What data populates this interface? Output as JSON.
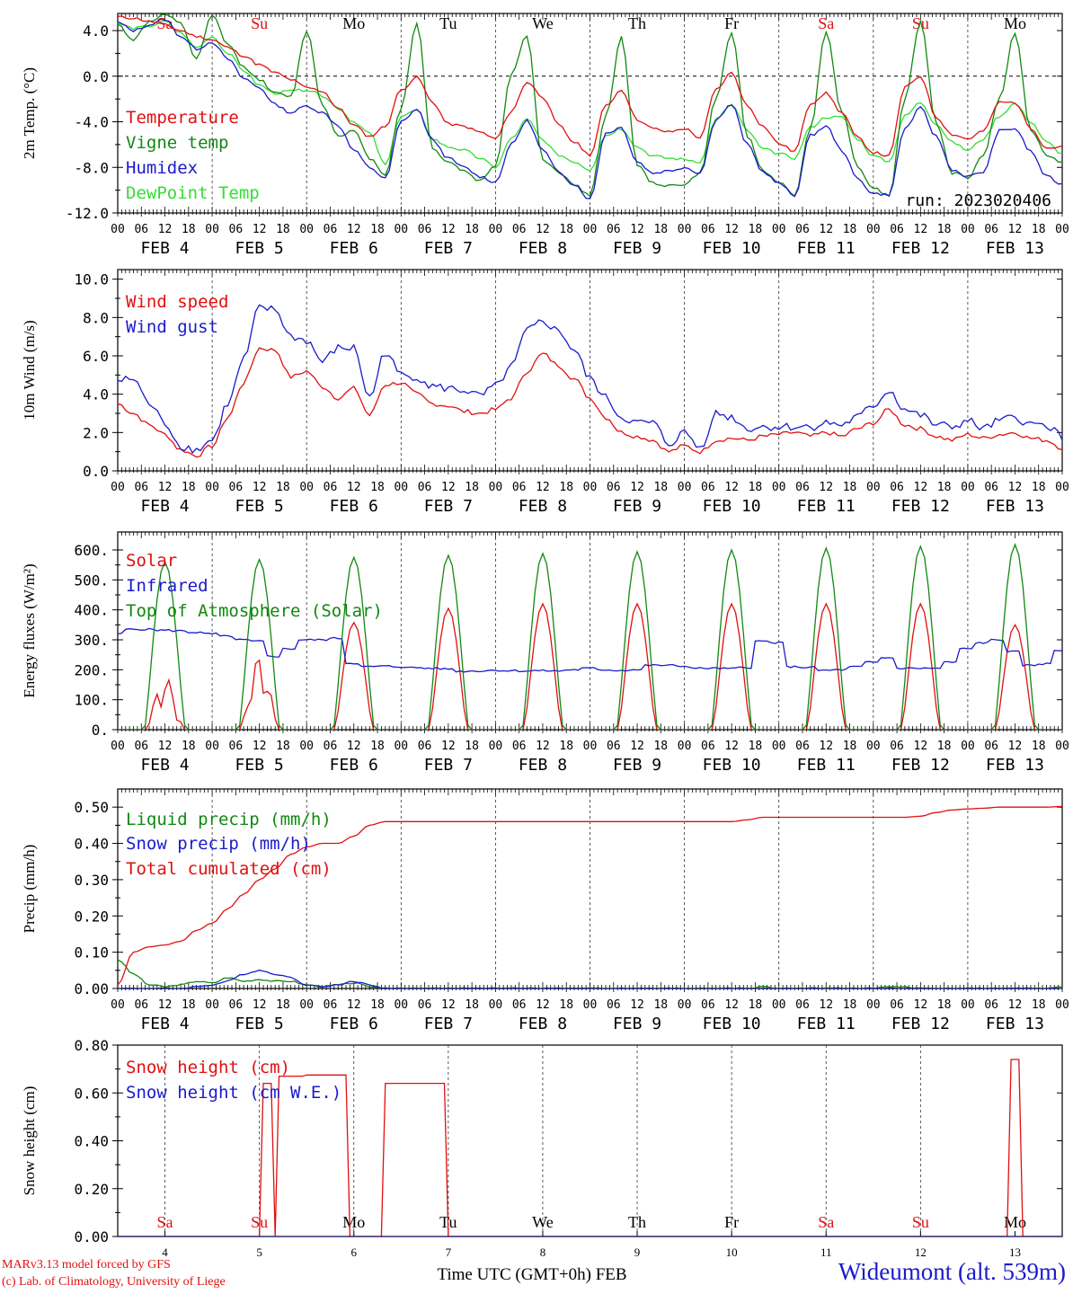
{
  "chart_data": [
    {
      "type": "line",
      "ylabel": "2m Temp. (°C)",
      "ylim": [
        -12,
        5.5
      ],
      "yticks": [
        "4.0",
        "0.0",
        "-4.0",
        "-8.0",
        "-12.0"
      ],
      "ytick_values": [
        4,
        0,
        -4,
        -8,
        -12
      ],
      "annotation": "run: 2023020406",
      "series": [
        {
          "name": "Temperature",
          "color": "#e01010",
          "values": [
            5.2,
            5.1,
            4.8,
            4.5,
            4.0,
            3.5,
            3.2,
            2.5,
            1.8,
            1.0,
            0.3,
            -0.3,
            -1.0,
            -1.3,
            -2.8,
            -4.3,
            -5.3,
            -4.4,
            -1.2,
            -0.1,
            -2.3,
            -4.2,
            -4.4,
            -4.9,
            -5.5,
            -3.1,
            -0.5,
            -1.8,
            -4.3,
            -5.8,
            -6.9,
            -2.6,
            -1.2,
            -3.8,
            -4.6,
            -4.9,
            -4.6,
            -5.4,
            -1.2,
            0.3,
            -2.6,
            -4.4,
            -5.9,
            -6.6,
            -2.4,
            -1.5,
            -3.2,
            -5.4,
            -6.7,
            -7.0,
            -1.0,
            0.0,
            -3.6,
            -5.1,
            -5.5,
            -4.8,
            -2.3,
            -2.3,
            -4.5,
            -6.3,
            -6.2
          ]
        },
        {
          "name": "Vigne temp",
          "color": "#118811",
          "values": [
            4.5,
            3.2,
            4.8,
            5.4,
            4.6,
            1.5,
            5.3,
            2.8,
            0.8,
            -0.3,
            -1.5,
            -1.8,
            4.0,
            -2.5,
            -5.2,
            -4.8,
            -7.2,
            -8.6,
            -2.8,
            4.7,
            -6.4,
            -7.5,
            -8.3,
            -9.2,
            -7.8,
            0.2,
            3.6,
            -7.4,
            -8.4,
            -9.5,
            -10.5,
            -3.5,
            3.4,
            -7.8,
            -9.4,
            -9.6,
            -9.5,
            -8.5,
            -2.0,
            3.9,
            -5.3,
            -8.3,
            -9.3,
            -10.5,
            -4.5,
            3.9,
            -3.1,
            -7.9,
            -9.8,
            -10.5,
            -2.0,
            4.8,
            -4.1,
            -8.5,
            -8.9,
            -6.9,
            -2.0,
            3.8,
            -4.7,
            -6.9,
            -7.6
          ]
        },
        {
          "name": "Humidex",
          "color": "#1a1acc",
          "values": [
            4.7,
            4.0,
            4.5,
            5.0,
            3.5,
            2.4,
            3.0,
            1.5,
            -0.2,
            -1.0,
            -2.5,
            -3.2,
            -2.6,
            -3.2,
            -4.3,
            -6.5,
            -8.0,
            -9.0,
            -4.0,
            -2.9,
            -5.6,
            -7.2,
            -8.0,
            -8.8,
            -9.3,
            -6.0,
            -3.9,
            -6.5,
            -8.4,
            -9.5,
            -10.8,
            -5.0,
            -4.5,
            -7.5,
            -8.5,
            -8.3,
            -8.0,
            -8.5,
            -3.8,
            -2.5,
            -6.0,
            -8.4,
            -9.4,
            -10.5,
            -5.2,
            -4.4,
            -6.5,
            -9.0,
            -10.3,
            -10.4,
            -4.6,
            -2.8,
            -5.3,
            -8.2,
            -8.8,
            -8.4,
            -4.8,
            -4.6,
            -6.6,
            -8.8,
            -9.5
          ]
        },
        {
          "name": "DewPoint Temp",
          "color": "#33dd33",
          "values": [
            4.6,
            4.2,
            4.4,
            4.8,
            3.8,
            2.5,
            3.5,
            2.0,
            0.5,
            -0.8,
            -1.5,
            -1.3,
            -1.2,
            -1.7,
            -2.8,
            -4.0,
            -5.0,
            -7.8,
            -3.5,
            -3.0,
            -5.5,
            -6.2,
            -6.5,
            -7.2,
            -8.0,
            -5.5,
            -3.8,
            -5.6,
            -6.9,
            -7.5,
            -8.2,
            -5.2,
            -4.6,
            -6.2,
            -7.0,
            -7.2,
            -7.3,
            -7.5,
            -3.8,
            -2.5,
            -4.8,
            -6.4,
            -6.8,
            -7.2,
            -4.5,
            -3.6,
            -3.6,
            -5.5,
            -7.0,
            -7.5,
            -3.5,
            -2.3,
            -4.2,
            -5.8,
            -6.5,
            -5.5,
            -3.5,
            -2.4,
            -4.0,
            -5.8,
            -6.8
          ]
        }
      ]
    },
    {
      "type": "line",
      "ylabel": "10m Wind (m/s)",
      "ylim": [
        0,
        10.5
      ],
      "yticks": [
        "10.0",
        "8.0",
        "6.0",
        "4.0",
        "2.0",
        "0.0"
      ],
      "ytick_values": [
        10,
        8,
        6,
        4,
        2,
        0
      ],
      "series": [
        {
          "name": "Wind speed",
          "color": "#e01010",
          "values": [
            3.5,
            3.0,
            2.4,
            1.9,
            1.1,
            0.8,
            1.3,
            2.8,
            4.6,
            6.4,
            6.3,
            4.9,
            5.2,
            4.4,
            3.8,
            4.3,
            2.9,
            4.5,
            4.6,
            4.0,
            3.5,
            3.4,
            3.1,
            3.0,
            3.2,
            3.8,
            5.2,
            6.1,
            5.5,
            4.8,
            3.8,
            2.8,
            2.0,
            1.8,
            1.6,
            1.0,
            1.3,
            1.0,
            1.6,
            1.7,
            1.6,
            1.8,
            1.9,
            2.0,
            1.8,
            2.0,
            1.8,
            2.2,
            2.5,
            3.2,
            2.4,
            2.2,
            1.8,
            1.6,
            1.9,
            1.7,
            1.9,
            2.0,
            1.7,
            1.6,
            1.2
          ]
        },
        {
          "name": "Wind gust",
          "color": "#1a1acc",
          "values": [
            4.7,
            4.8,
            3.5,
            2.5,
            1.3,
            1.1,
            1.6,
            3.5,
            5.8,
            8.5,
            8.4,
            7.0,
            6.8,
            5.7,
            6.4,
            6.4,
            3.8,
            6.2,
            5.0,
            4.9,
            4.4,
            4.3,
            4.2,
            3.9,
            4.4,
            5.4,
            7.3,
            7.8,
            7.3,
            6.3,
            4.8,
            3.8,
            2.8,
            2.5,
            2.5,
            1.4,
            2.0,
            1.2,
            3.0,
            2.8,
            2.2,
            2.3,
            2.3,
            2.3,
            2.3,
            2.5,
            2.4,
            2.8,
            3.4,
            4.2,
            3.2,
            2.9,
            2.4,
            2.3,
            2.6,
            2.2,
            2.6,
            2.8,
            2.4,
            2.4,
            1.8
          ]
        }
      ]
    },
    {
      "type": "line",
      "ylabel": "Energy fluxes (W/m²)",
      "ylim": [
        0,
        660
      ],
      "yticks": [
        "600.",
        "500.",
        "400.",
        "300.",
        "200.",
        "100.",
        "0."
      ],
      "ytick_values": [
        600,
        500,
        400,
        300,
        200,
        100,
        0
      ],
      "series": [
        {
          "name": "Solar",
          "color": "#e01010",
          "daily_peaks": [
            178,
            248,
            358,
            405,
            420,
            420,
            420,
            420,
            420,
            350
          ],
          "note_peak_days": [
            "FEB 4",
            "FEB 5",
            "FEB 6",
            "FEB 7",
            "FEB 8",
            "FEB 9",
            "FEB 10",
            "FEB 11",
            "FEB 12",
            "FEB 13"
          ]
        },
        {
          "name": "Infrared",
          "color": "#1a1acc",
          "values": [
            320,
            335,
            335,
            332,
            330,
            325,
            320,
            312,
            300,
            295,
            245,
            270,
            300,
            300,
            305,
            222,
            210,
            212,
            210,
            207,
            205,
            203,
            195,
            196,
            198,
            197,
            196,
            197,
            196,
            200,
            205,
            200,
            198,
            200,
            215,
            215,
            212,
            205,
            205,
            204,
            208,
            295,
            290,
            210,
            208,
            198,
            200,
            210,
            225,
            240,
            205,
            205,
            205,
            225,
            270,
            290,
            300,
            260,
            215,
            220,
            265
          ]
        },
        {
          "name": "Top of Atmosphere (Solar)",
          "color": "#118811",
          "daily_peaks": [
            560,
            568,
            575,
            582,
            588,
            594,
            600,
            606,
            612,
            618
          ]
        }
      ]
    },
    {
      "type": "line",
      "ylabel": "Precip (mm/h)",
      "ylim": [
        0,
        0.55
      ],
      "yticks": [
        "0.50",
        "0.40",
        "0.30",
        "0.20",
        "0.10",
        "0.00"
      ],
      "ytick_values": [
        0.5,
        0.4,
        0.3,
        0.2,
        0.1,
        0.0
      ],
      "series": [
        {
          "name": "Liquid precip (mm/h)",
          "color": "#118811",
          "values": [
            0.08,
            0.04,
            0.01,
            0.005,
            0.01,
            0.02,
            0.015,
            0.03,
            0.02,
            0.025,
            0.02,
            0.02,
            0.01,
            0.005,
            0.01,
            0.015,
            0.005,
            0,
            0,
            0,
            0,
            0,
            0,
            0,
            0,
            0,
            0,
            0,
            0,
            0,
            0,
            0,
            0,
            0,
            0,
            0,
            0,
            0,
            0,
            0,
            0,
            0.005,
            0,
            0,
            0,
            0,
            0,
            0,
            0,
            0.005,
            0.005,
            0,
            0,
            0,
            0,
            0,
            0,
            0,
            0,
            0,
            0.005
          ]
        },
        {
          "name": "Snow precip (mm/h)",
          "color": "#1a1acc",
          "values": [
            0,
            0,
            0,
            0,
            0,
            0.005,
            0.01,
            0.02,
            0.04,
            0.05,
            0.04,
            0.03,
            0.01,
            0.005,
            0.01,
            0.02,
            0.01,
            0,
            0,
            0,
            0,
            0,
            0,
            0,
            0,
            0,
            0,
            0,
            0,
            0,
            0,
            0,
            0,
            0,
            0,
            0,
            0,
            0,
            0,
            0,
            0,
            0,
            0,
            0,
            0,
            0,
            0,
            0,
            0,
            0,
            0,
            0,
            0,
            0,
            0,
            0,
            0,
            0,
            0,
            0,
            0
          ]
        },
        {
          "name": "Total cumulated (cm)",
          "color": "#e01010",
          "values": [
            0.01,
            0.1,
            0.115,
            0.12,
            0.13,
            0.16,
            0.18,
            0.22,
            0.26,
            0.3,
            0.33,
            0.37,
            0.39,
            0.4,
            0.4,
            0.42,
            0.45,
            0.46,
            0.46,
            0.46,
            0.46,
            0.46,
            0.46,
            0.46,
            0.46,
            0.46,
            0.46,
            0.46,
            0.46,
            0.46,
            0.46,
            0.46,
            0.46,
            0.46,
            0.46,
            0.46,
            0.46,
            0.46,
            0.46,
            0.46,
            0.465,
            0.472,
            0.472,
            0.472,
            0.472,
            0.472,
            0.472,
            0.472,
            0.472,
            0.472,
            0.472,
            0.475,
            0.485,
            0.492,
            0.495,
            0.497,
            0.5,
            0.5,
            0.5,
            0.5,
            0.502
          ]
        }
      ]
    },
    {
      "type": "line",
      "ylabel": "Snow height (cm)",
      "ylim": [
        0,
        0.8
      ],
      "yticks": [
        "0.80",
        "0.60",
        "0.40",
        "0.20",
        "0.00"
      ],
      "ytick_values": [
        0.8,
        0.6,
        0.4,
        0.2,
        0.0
      ],
      "bottom_day_labels": [
        "Sa",
        "Su",
        "Mo",
        "Tu",
        "We",
        "Th",
        "Fr",
        "Sa",
        "Su",
        "Mo"
      ],
      "bottom_day_numbers": [
        "4",
        "5",
        "6",
        "7",
        "8",
        "9",
        "10",
        "11",
        "12",
        "13"
      ],
      "xlabel": "Time UTC (GMT+0h) FEB",
      "series": [
        {
          "name": "Snow height (cm)",
          "color": "#e01010",
          "segments": [
            {
              "from_hour": 36.5,
              "to_hour": 39.5,
              "value": 0.64
            },
            {
              "from_hour": 41.0,
              "to_hour": 47.5,
              "value": 0.67
            },
            {
              "from_hour": 47.5,
              "to_hour": 58.0,
              "value": 0.675
            },
            {
              "from_hour": 68.0,
              "to_hour": 83.5,
              "value": 0.64
            },
            {
              "from_hour": 227.0,
              "to_hour": 229.0,
              "value": 0.74
            }
          ]
        },
        {
          "name": "Snow height (cm W.E.)",
          "color": "#1a1acc",
          "segments": []
        }
      ]
    }
  ],
  "x_axis": {
    "hour_labels": [
      "00",
      "06",
      "12",
      "18"
    ],
    "date_labels": [
      "FEB  4",
      "FEB  5",
      "FEB  6",
      "FEB  7",
      "FEB  8",
      "FEB  9",
      "FEB 10",
      "FEB 11",
      "FEB 12",
      "FEB 13"
    ],
    "day_names": [
      "Sa",
      "Su",
      "Mo",
      "Tu",
      "We",
      "Th",
      "Fr",
      "Sa",
      "Su",
      "Mo"
    ],
    "weekend_color": "#e01010",
    "weekday_color": "#000000",
    "final_hour_label": "00"
  },
  "footer": {
    "model_line": "MARv3.13 model forced by GFS",
    "copyright_line": "(c) Lab. of Climatology, University of Liege",
    "station": "Wideumont (alt. 539m)"
  }
}
